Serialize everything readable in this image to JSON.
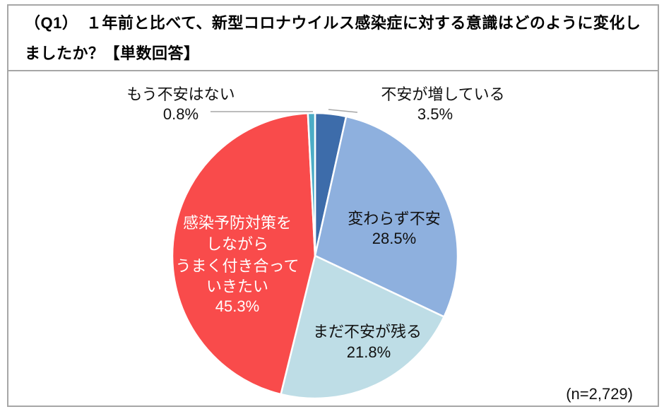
{
  "title": {
    "line1": "（Q1）　１年前と比べて、新型コロナウイルス感染症に対する意識はどのように変化し",
    "line2": "ましたか？【単数回答】"
  },
  "sample_size_label": "(n=2,729)",
  "colors": {
    "border_gray": "#a6a6a6",
    "leader_line_gray": "#a6a6a6",
    "slice_increased_blue": "#3d6caa",
    "slice_unchanged_blue": "#8eb0de",
    "slice_remains_lightblue": "#bedde6",
    "slice_cope_red": "#f94b4b",
    "slice_noanxiety_teal": "#4bacc6",
    "inside_label_white": "#ffffff",
    "label_black": "#111111"
  },
  "chart_data": {
    "type": "pie",
    "title": "（Q1）１年前と比べて、新型コロナウイルス感染症に対する意識はどのように変化しましたか？【単数回答】",
    "sample_n": "2,729",
    "start_angle_deg": 0,
    "direction": "clockwise",
    "legend_position": "none",
    "slices": [
      {
        "label": "不安が増している",
        "value": 3.5,
        "pct_label": "3.5%",
        "color": "#3d6caa",
        "label_position": "outside-top-right"
      },
      {
        "label": "変わらず不安",
        "value": 28.5,
        "pct_label": "28.5%",
        "color": "#8eb0de",
        "label_position": "inside"
      },
      {
        "label": "まだ不安が残る",
        "value": 21.8,
        "pct_label": "21.8%",
        "color": "#bedde6",
        "label_position": "inside"
      },
      {
        "label": "感染予防対策をしながらうまく付き合っていきたい",
        "label_lines": [
          "感染予防対策を",
          "しながら",
          "うまく付き合って",
          "いきたい"
        ],
        "value": 45.3,
        "pct_label": "45.3%",
        "color": "#f94b4b",
        "text_color": "#ffffff",
        "label_position": "inside"
      },
      {
        "label": "もう不安はない",
        "value": 0.8,
        "pct_label": "0.8%",
        "color": "#4bacc6",
        "label_position": "outside-top-left"
      }
    ]
  }
}
